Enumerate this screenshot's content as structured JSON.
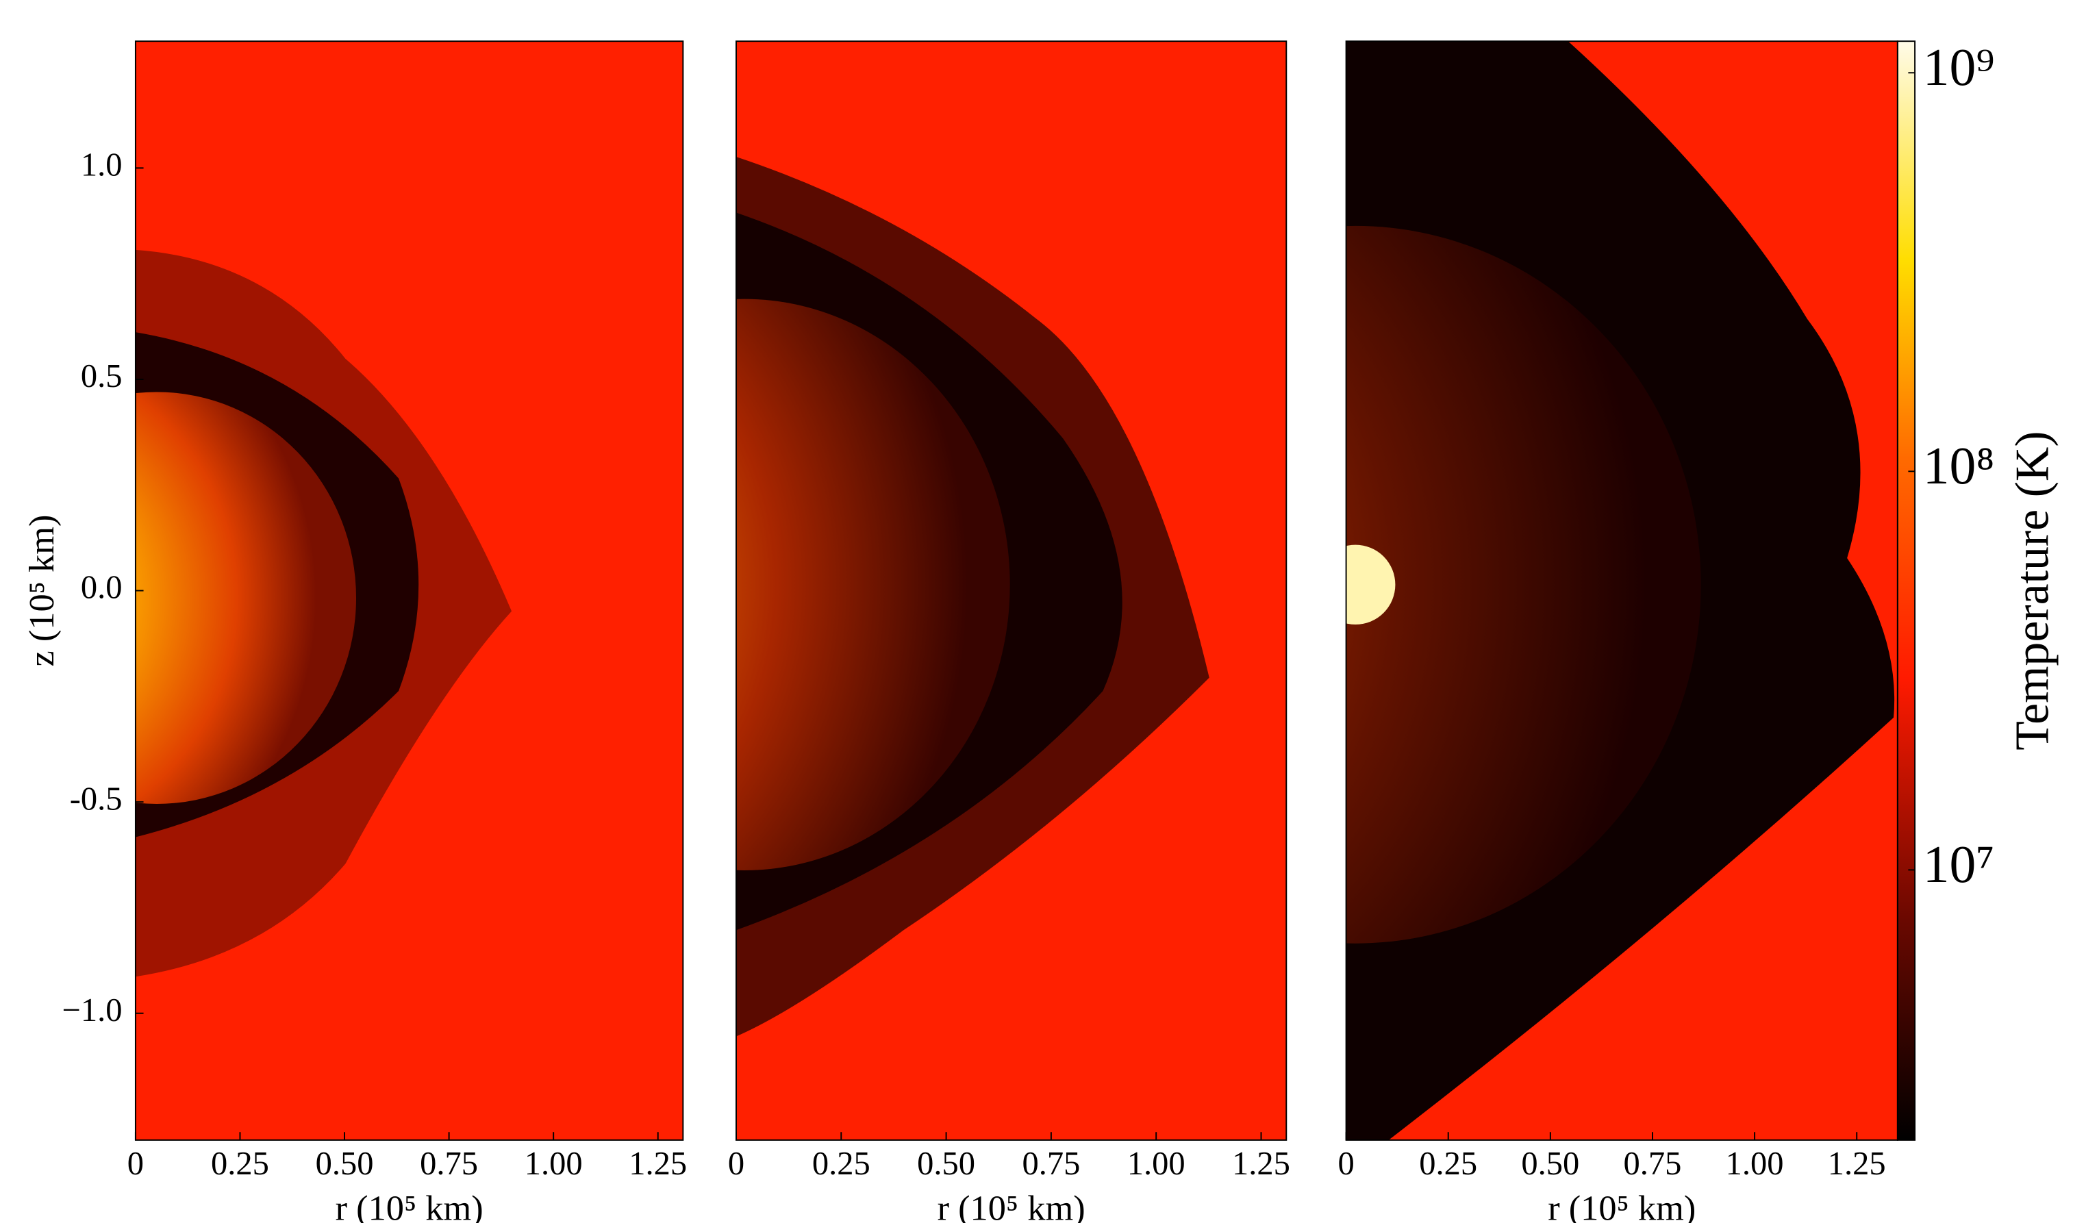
{
  "chart_data": [
    {
      "type": "image",
      "xlabel": "r (10⁵ km)",
      "ylabel": "z (10⁵ km)",
      "xlim": [
        0,
        1.31
      ],
      "ylim": [
        -1.3,
        1.3
      ],
      "xticks": [
        0,
        0.25,
        {
          "value": 0.5,
          "label": "0.50"
        },
        0.75,
        {
          "value": 1,
          "label": "1.00"
        },
        1.25
      ],
      "yticks": [
        {
          "value": -1,
          "label": "−1.0"
        },
        -0.5,
        {
          "value": 0,
          "label": "0.0"
        },
        0.5,
        {
          "value": 1,
          "label": "1.0"
        }
      ]
    },
    {
      "type": "image",
      "xlabel": "r (10⁵ km)",
      "xlim": [
        0,
        1.31
      ],
      "xticks": [
        0,
        0.25,
        {
          "value": 0.5,
          "label": "0.50"
        },
        0.75,
        {
          "value": 1,
          "label": "1.00"
        },
        1.25
      ]
    },
    {
      "type": "image",
      "xlabel": "r (10⁵ km)",
      "xlim": [
        0,
        1.35
      ],
      "xticks": [
        0,
        0.25,
        {
          "value": 0.5,
          "label": "0.50"
        },
        0.75,
        {
          "value": 1,
          "label": "1.00"
        },
        1.25
      ]
    },
    {
      "type": "colorbar",
      "label": "Temperature (K)",
      "log": true,
      "ylim": [
        2100000,
        1200000000
      ],
      "yticks": [
        {
          "value": 10000000,
          "label": "10⁷"
        },
        {
          "value": 100000000,
          "label": "10⁸"
        },
        {
          "value": 1000000000,
          "label": "10⁹"
        }
      ]
    }
  ]
}
